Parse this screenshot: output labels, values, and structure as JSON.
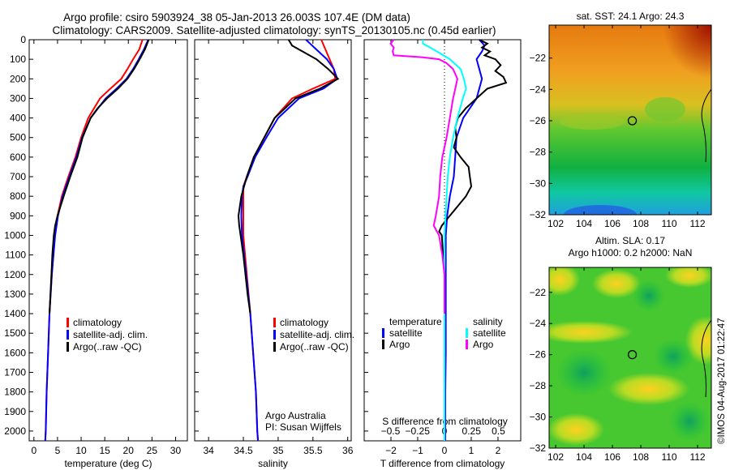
{
  "title_line1": "Argo profile: csiro 5903924_38 05-Jan-2013 26.003S 107.4E (DM data)",
  "title_line2": "Climatology: CARS2009. Satellite-adjusted climatology: synTS_20130105.nc (0.45d earlier)",
  "credit": "©IMOS 04-Aug-2017 01:22:47",
  "colors": {
    "climatology": "#ff0000",
    "satellite": "#0000ff",
    "argo": "#000000",
    "sal_sat": "#00ffff",
    "sal_argo": "#ff00ff"
  },
  "chart_data": [
    {
      "type": "line",
      "xlabel": "temperature (deg C)",
      "ylabel": "",
      "xlim": [
        -1,
        32.5
      ],
      "ylim": [
        0,
        2050
      ],
      "xticks": [
        0,
        5,
        10,
        15,
        20,
        25,
        30
      ],
      "yticks": [
        0,
        100,
        200,
        300,
        400,
        500,
        600,
        700,
        800,
        900,
        1000,
        1100,
        1200,
        1300,
        1400,
        1500,
        1600,
        1700,
        1800,
        1900,
        2000
      ],
      "legend": [
        "climatology",
        "satellite-adj. clim.",
        "Argo(..raw -QC)"
      ],
      "series": [
        {
          "name": "climatology",
          "color": "#ff0000",
          "depth": [
            0,
            50,
            100,
            150,
            200,
            250,
            300,
            400,
            500,
            600,
            700,
            800,
            900,
            1000,
            1200,
            1400,
            1600,
            1800,
            2000,
            2050
          ],
          "values": [
            23,
            22.3,
            21,
            19.8,
            18.5,
            16.2,
            14,
            11.5,
            10,
            8.8,
            7.3,
            5.9,
            5,
            4.4,
            3.8,
            3.3,
            3,
            2.7,
            2.5,
            2.4
          ]
        },
        {
          "name": "satellite-adj. clim.",
          "color": "#0000ff",
          "depth": [
            0,
            50,
            100,
            150,
            200,
            250,
            300,
            400,
            500,
            600,
            700,
            800,
            900,
            1000,
            1200,
            1400,
            1600,
            1800,
            2000,
            2050
          ],
          "values": [
            24.2,
            23.3,
            22.2,
            21,
            19.6,
            17.5,
            15.2,
            12,
            10.2,
            9,
            7.5,
            6.1,
            5.1,
            4.5,
            3.8,
            3.3,
            3,
            2.7,
            2.5,
            2.4
          ]
        },
        {
          "name": "Argo(..raw -QC)",
          "color": "#000000",
          "depth": [
            0,
            20,
            50,
            100,
            150,
            200,
            250,
            300,
            350,
            400,
            500,
            600,
            700,
            800,
            900,
            950,
            1000,
            1100,
            1200,
            1300,
            1400
          ],
          "values": [
            24.3,
            24,
            23.5,
            22.4,
            21.2,
            19.8,
            17.8,
            15.5,
            13.5,
            12,
            10.3,
            9.2,
            7.7,
            6.3,
            5,
            4.5,
            4.2,
            3.9,
            3.7,
            3.5,
            3.3
          ]
        }
      ]
    },
    {
      "type": "line",
      "xlabel": "salinity",
      "xlim": [
        33.8,
        36.05
      ],
      "ylim": [
        0,
        2050
      ],
      "xticks": [
        34,
        34.5,
        35,
        35.5,
        36
      ],
      "legend": [
        "climatology",
        "satellite-adj. clim.",
        "Argo(..raw -QC)"
      ],
      "annotation": [
        "Argo Australia",
        "PI: Susan Wijffels"
      ],
      "series": [
        {
          "name": "climatology",
          "color": "#ff0000",
          "depth": [
            0,
            50,
            100,
            150,
            200,
            250,
            300,
            400,
            500,
            600,
            700,
            750,
            800,
            900,
            1000,
            1200,
            1400,
            1600,
            1800,
            2000,
            2050
          ],
          "values": [
            35.62,
            35.68,
            35.74,
            35.8,
            35.82,
            35.5,
            35.2,
            34.95,
            34.8,
            34.65,
            34.55,
            34.5,
            34.5,
            34.5,
            34.5,
            34.55,
            34.6,
            34.64,
            34.68,
            34.7,
            34.71
          ]
        },
        {
          "name": "satellite-adj. clim.",
          "color": "#0000ff",
          "depth": [
            0,
            50,
            100,
            150,
            200,
            250,
            300,
            400,
            500,
            600,
            700,
            750,
            800,
            900,
            1000,
            1200,
            1400,
            1600,
            1800,
            2000,
            2050
          ],
          "values": [
            35.4,
            35.55,
            35.7,
            35.8,
            35.85,
            35.65,
            35.3,
            35.0,
            34.83,
            34.67,
            34.56,
            34.5,
            34.48,
            34.47,
            34.48,
            34.54,
            34.6,
            34.64,
            34.68,
            34.7,
            34.71
          ]
        },
        {
          "name": "Argo(..raw -QC)",
          "color": "#000000",
          "depth": [
            0,
            30,
            60,
            100,
            150,
            200,
            250,
            300,
            400,
            500,
            600,
            700,
            800,
            900,
            950,
            1000,
            1100,
            1200,
            1300,
            1400
          ],
          "values": [
            35.15,
            35.2,
            35.35,
            35.55,
            35.72,
            35.86,
            35.6,
            35.25,
            34.95,
            34.8,
            34.65,
            34.55,
            34.47,
            34.43,
            34.44,
            34.46,
            34.5,
            34.53,
            34.56,
            34.6
          ]
        }
      ]
    },
    {
      "type": "line",
      "xlabel": "T difference from climatology",
      "x2label": "S difference from climatology",
      "xlim": [
        -3,
        2.85
      ],
      "ylim": [
        0,
        2050
      ],
      "xticks": [
        -2,
        -1,
        0,
        1,
        2
      ],
      "x2ticks": [
        -0.5,
        -0.25,
        0,
        0.25,
        0.5
      ],
      "legend_temperature": {
        "header": "temperature",
        "items": [
          "satellite",
          "Argo"
        ]
      },
      "legend_salinity": {
        "header": "salinity",
        "items": [
          "satellite",
          "Argo"
        ]
      },
      "series": [
        {
          "name": "temperature satellite",
          "color": "#0000ff",
          "units": "T",
          "depth": [
            0,
            30,
            60,
            100,
            150,
            200,
            300,
            400,
            500,
            600,
            700,
            800,
            900,
            1000,
            1200,
            1400,
            1600,
            1800,
            2000,
            2050
          ],
          "values": [
            1.3,
            1.5,
            1.4,
            1.2,
            1.3,
            1.4,
            1.2,
            0.7,
            0.45,
            0.4,
            0.35,
            0.2,
            0.1,
            0.05,
            0.05,
            0.05,
            0.05,
            0.03,
            0.03,
            0.03
          ]
        },
        {
          "name": "temperature Argo",
          "color": "#000000",
          "units": "T",
          "depth": [
            0,
            20,
            40,
            60,
            80,
            100,
            130,
            160,
            190,
            220,
            250,
            300,
            350,
            400,
            450,
            500,
            550,
            600,
            650,
            700,
            750,
            800,
            850,
            900,
            950,
            980,
            1000,
            1100,
            1200,
            1300,
            1400
          ],
          "values": [
            1.3,
            1.6,
            1.4,
            1.7,
            1.5,
            1.9,
            2.1,
            1.9,
            2.2,
            2.3,
            1.6,
            1.2,
            0.8,
            0.5,
            0.4,
            0.45,
            0.35,
            0.6,
            0.9,
            0.95,
            1.0,
            0.8,
            0.5,
            0.2,
            -0.1,
            -0.2,
            -0.1,
            -0.05,
            0,
            0,
            0
          ]
        },
        {
          "name": "salinity satellite",
          "color": "#00ffff",
          "units": "S",
          "depth": [
            0,
            20,
            50,
            100,
            150,
            200,
            250,
            300,
            400,
            500,
            600,
            700,
            800,
            900,
            1000,
            1200,
            1400,
            1600,
            1800,
            2000,
            2050
          ],
          "values": [
            -0.2,
            -0.2,
            -0.1,
            0.05,
            0.15,
            0.18,
            0.2,
            0.17,
            0.12,
            0.08,
            0.05,
            0.03,
            0.02,
            0.01,
            0,
            0,
            0,
            0,
            0,
            0,
            0
          ]
        },
        {
          "name": "salinity Argo",
          "color": "#ff00ff",
          "units": "S",
          "depth": [
            0,
            20,
            40,
            60,
            80,
            90,
            100,
            120,
            150,
            200,
            250,
            300,
            400,
            500,
            600,
            700,
            800,
            900,
            950,
            1000,
            1100,
            1200,
            1400
          ],
          "values": [
            -0.47,
            -0.5,
            -0.47,
            -0.48,
            -0.47,
            -0.2,
            -0.05,
            0.02,
            0.08,
            0.12,
            0.1,
            0.08,
            0.05,
            0.02,
            -0.02,
            -0.04,
            -0.05,
            -0.08,
            -0.1,
            -0.05,
            -0.02,
            0,
            0
          ]
        }
      ]
    },
    {
      "type": "heatmap",
      "title": "sat. SST: 24.1  Argo: 24.3",
      "xlim": [
        101.54,
        112.97
      ],
      "ylim": [
        -32,
        -19.9
      ],
      "xticks": [
        102,
        104,
        106,
        108,
        110,
        112
      ],
      "yticks": [
        -22,
        -24,
        -26,
        -28,
        -30,
        -32
      ],
      "marker": {
        "lon": 107.4,
        "lat": -26.0
      }
    },
    {
      "type": "heatmap",
      "title": "Altim. SLA: 0.17",
      "subtitle": "Argo h1000: 0.2 h2000: NaN",
      "xlim": [
        101.54,
        112.97
      ],
      "ylim": [
        -32,
        -20.4
      ],
      "xticks": [
        102,
        104,
        106,
        108,
        110,
        112
      ],
      "yticks": [
        -22,
        -24,
        -26,
        -28,
        -30,
        -32
      ],
      "marker": {
        "lon": 107.4,
        "lat": -26.0
      }
    }
  ]
}
